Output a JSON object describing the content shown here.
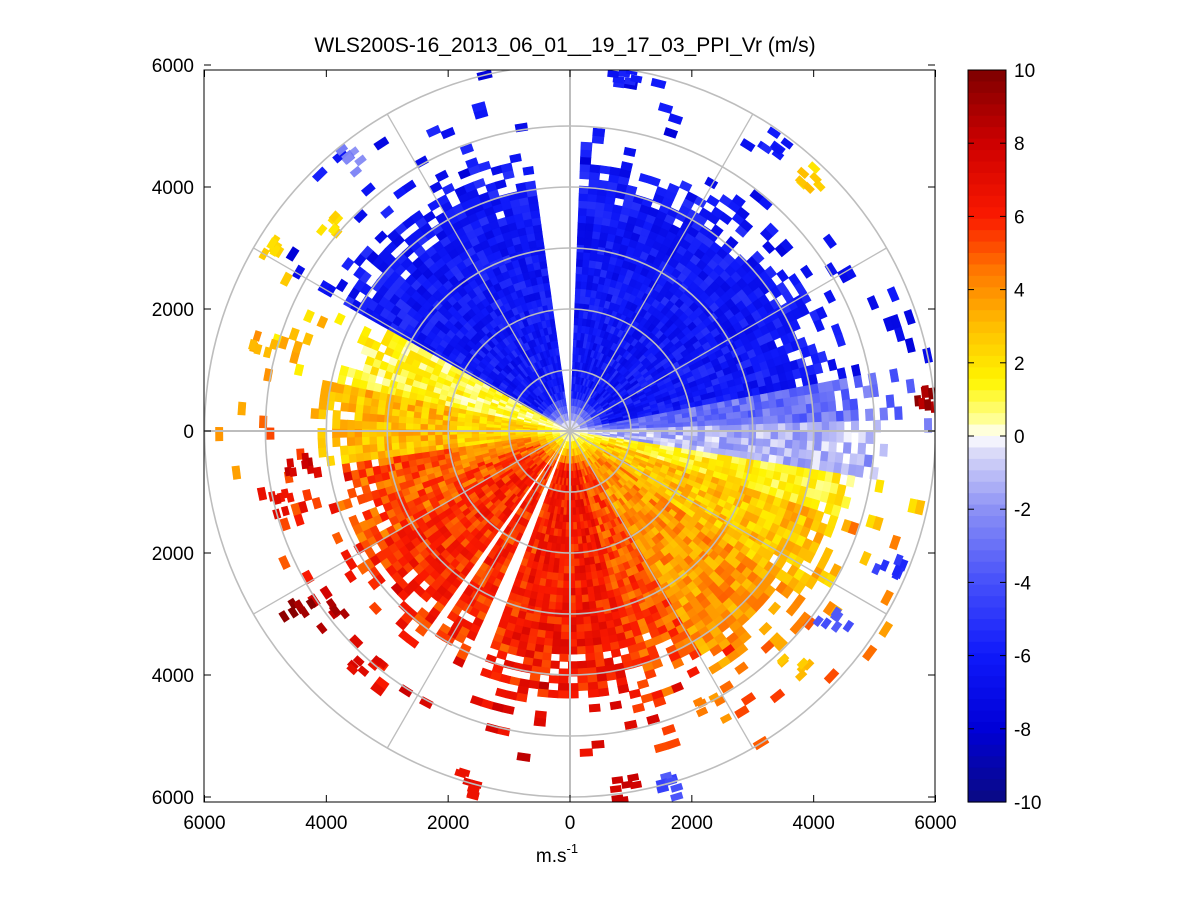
{
  "chart_data": {
    "type": "heatmap",
    "subtype": "polar-ppi-scan",
    "title": "WLS200S-16_2013_06_01__19_17_03_PPI_Vr (m/s)",
    "xlabel": "m.s",
    "xlabel_superscript": "-1",
    "ylabel": "",
    "xlim": [
      -6000,
      6000
    ],
    "ylim": [
      -6000,
      6000
    ],
    "x_ticks": [
      -6000,
      -4000,
      -2000,
      0,
      2000,
      4000,
      6000
    ],
    "x_tick_labels": [
      "6000",
      "4000",
      "2000",
      "0",
      "2000",
      "4000",
      "6000"
    ],
    "y_ticks": [
      6000,
      4000,
      2000,
      0,
      -2000,
      -4000,
      -6000
    ],
    "y_tick_labels": [
      "6000",
      "4000",
      "2000",
      "0",
      "2000",
      "4000",
      "6000"
    ],
    "range_rings_m": [
      1000,
      2000,
      3000,
      4000,
      5000,
      6000
    ],
    "spokes_deg": [
      0,
      30,
      60,
      90,
      120,
      150,
      180,
      210,
      240,
      270,
      300,
      330
    ],
    "colorbar": {
      "min": -10,
      "max": 10,
      "ticks": [
        10,
        8,
        6,
        4,
        2,
        0,
        -2,
        -4,
        -6,
        -8,
        -10
      ],
      "tick_labels": [
        "10",
        "8",
        "6",
        "4",
        "2",
        "0",
        "-2",
        "-4",
        "-6",
        "-8",
        "-10"
      ],
      "colormap": "blue-white-yellow-red"
    },
    "velocity_field_summary": [
      {
        "sector": "north (bearing ~300°-75°)",
        "radial_velocity_ms": -6,
        "max_range_m": 4500
      },
      {
        "sector": "west (bearing ~270°-300°)",
        "radial_velocity_ms": 2.5,
        "max_range_m": 4000
      },
      {
        "sector": "south-west (bearing ~195°-265°)",
        "radial_velocity_ms": 6,
        "max_range_m": 5200
      },
      {
        "sector": "south (bearing ~165°-195°)",
        "radial_velocity_ms": 6.5,
        "max_range_m": 4300
      },
      {
        "sector": "south-east (bearing ~105°-160°)",
        "radial_velocity_ms": 3.5,
        "max_range_m": 4700
      },
      {
        "sector": "east (bearing ~85°-105°)",
        "radial_velocity_ms": -1,
        "max_range_m": 5000
      }
    ]
  }
}
